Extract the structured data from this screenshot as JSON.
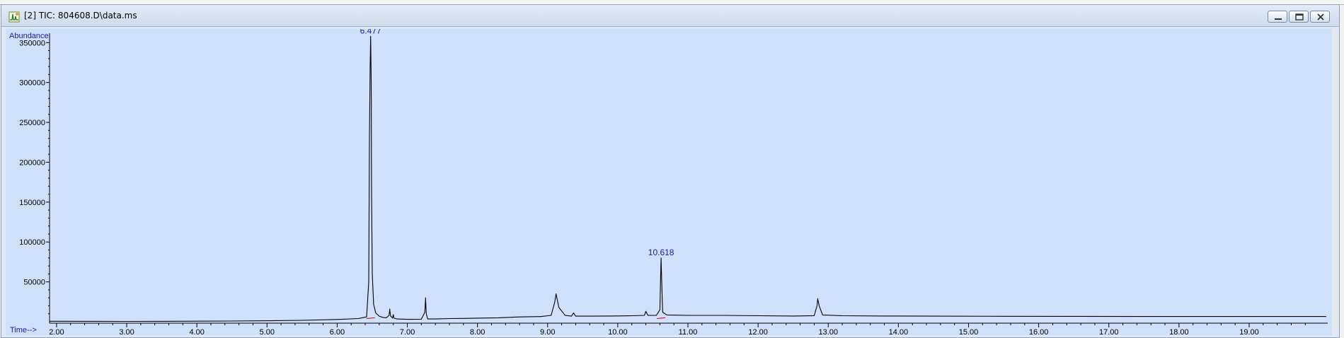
{
  "window": {
    "title": "[2] TIC: 804608.D\\data.ms",
    "icons": {
      "app": "chromatogram-icon",
      "minimize": "minimize-icon",
      "restore": "restore-icon",
      "close": "close-icon"
    }
  },
  "chart_data": {
    "type": "line",
    "ylabel": "Abundance",
    "xlabel": "Time-->",
    "xlim": [
      1.9,
      20.12
    ],
    "ylim": [
      0,
      360000
    ],
    "yticks": [
      50000,
      100000,
      150000,
      200000,
      250000,
      300000,
      350000
    ],
    "ytick_labels": [
      "50000",
      "100000",
      "150000",
      "200000",
      "250000",
      "300000",
      "350000"
    ],
    "xticks": [
      2,
      3,
      4,
      5,
      6,
      7,
      8,
      9,
      10,
      11,
      12,
      13,
      14,
      15,
      16,
      17,
      18,
      19
    ],
    "xtick_labels": [
      "2.00",
      "3.00",
      "4.00",
      "5.00",
      "6.00",
      "7.00",
      "8.00",
      "9.00",
      "10.00",
      "11.00",
      "12.00",
      "13.00",
      "14.00",
      "15.00",
      "16.00",
      "17.00",
      "18.00",
      "19.00"
    ],
    "grid": false,
    "colors": {
      "trace": "#000000",
      "axes": "#000000",
      "labels": "#1a1aa8",
      "integration_marks": "#d40000",
      "background": "#cfe0fb"
    },
    "peak_labels": [
      {
        "x": 6.477,
        "y": 358000,
        "text": "6.477"
      },
      {
        "x": 10.618,
        "y": 80000,
        "text": "10.618"
      }
    ],
    "series": [
      {
        "x": [
          1.9,
          2.4,
          3.0,
          3.5,
          4.0,
          4.5,
          5.0,
          5.5,
          6.0,
          6.3,
          6.42,
          6.45,
          6.46,
          6.47,
          6.477,
          6.485,
          6.49,
          6.5,
          6.52,
          6.55,
          6.6,
          6.65,
          6.7,
          6.74,
          6.75,
          6.76,
          6.79,
          6.8,
          6.81,
          6.85,
          7.0,
          7.2,
          7.25,
          7.26,
          7.27,
          7.29,
          7.4,
          7.6,
          7.8,
          8.0,
          8.3,
          8.6,
          8.9,
          9.05,
          9.1,
          9.12,
          9.16,
          9.25,
          9.34,
          9.37,
          9.4,
          9.6,
          9.9,
          10.2,
          10.38,
          10.4,
          10.43,
          10.55,
          10.6,
          10.61,
          10.618,
          10.625,
          10.64,
          10.7,
          11.0,
          11.5,
          12.0,
          12.5,
          12.8,
          12.84,
          12.85,
          12.87,
          12.92,
          13.2,
          13.8,
          14.5,
          15.5,
          16.5,
          17.5,
          18.5,
          19.5,
          20.1
        ],
        "y": [
          600,
          500,
          450,
          500,
          700,
          900,
          1200,
          1800,
          2800,
          4000,
          6000,
          50000,
          230000,
          320000,
          358000,
          300000,
          160000,
          60000,
          22000,
          11000,
          7000,
          5500,
          5000,
          8000,
          16000,
          7500,
          4500,
          9000,
          4500,
          3500,
          3000,
          3200,
          12000,
          30000,
          10000,
          3500,
          3500,
          4000,
          4200,
          4500,
          5000,
          6000,
          6500,
          8000,
          24000,
          35000,
          18000,
          8000,
          7000,
          11000,
          7000,
          7000,
          7200,
          7500,
          8000,
          13000,
          8000,
          8000,
          15000,
          55000,
          80000,
          55000,
          12000,
          8500,
          8000,
          8000,
          7500,
          7200,
          7500,
          20000,
          29000,
          20000,
          8500,
          7500,
          7200,
          7000,
          6800,
          6700,
          6600,
          6600,
          6600,
          6600
        ]
      }
    ]
  }
}
